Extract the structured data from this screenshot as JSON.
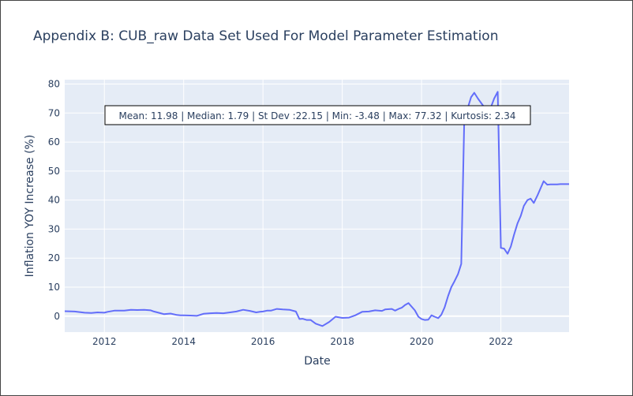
{
  "chart_data": {
    "type": "line",
    "title": "Appendix B: CUB_raw Data Set Used For Model Parameter Estimation",
    "xlabel": "Date",
    "ylabel": "Inflation YOY Increase (%)",
    "annotation": "Mean: 11.98 | Median: 1.79 | St Dev :22.15 | Min: -3.48 | Max: 77.32 | Kurtosis: 2.34",
    "xlim": [
      2011.0,
      2023.72
    ],
    "ylim": [
      -5.5,
      81.5
    ],
    "xticks": [
      2012,
      2014,
      2016,
      2018,
      2020,
      2022
    ],
    "xtick_labels": [
      "2012",
      "2014",
      "2016",
      "2018",
      "2020",
      "2022"
    ],
    "yticks": [
      0,
      10,
      20,
      30,
      40,
      50,
      60,
      70,
      80
    ],
    "ytick_labels": [
      "0",
      "10",
      "20",
      "30",
      "40",
      "50",
      "60",
      "70",
      "80"
    ],
    "grid": true,
    "plot_bg": "#e5ecf6",
    "line_color": "#636efa",
    "series": [
      {
        "x": [
          2011.0,
          2011.25,
          2011.5,
          2011.67,
          2011.83,
          2012.0,
          2012.08,
          2012.25,
          2012.5,
          2012.67,
          2012.83,
          2013.0,
          2013.17,
          2013.25,
          2013.42,
          2013.5,
          2013.67,
          2013.83,
          2013.92,
          2014.0,
          2014.17,
          2014.33,
          2014.5,
          2014.67,
          2014.83,
          2015.0,
          2015.17,
          2015.33,
          2015.5,
          2015.67,
          2015.83,
          2015.92,
          2016.0,
          2016.1,
          2016.2,
          2016.35,
          2016.5,
          2016.67,
          2016.83,
          2016.92,
          2017.0,
          2017.1,
          2017.2,
          2017.33,
          2017.5,
          2017.67,
          2017.83,
          2018.0,
          2018.17,
          2018.33,
          2018.5,
          2018.67,
          2018.83,
          2019.0,
          2019.08,
          2019.25,
          2019.33,
          2019.42,
          2019.5,
          2019.58,
          2019.67,
          2019.83,
          2019.92,
          2020.0,
          2020.08,
          2020.17,
          2020.25,
          2020.33,
          2020.42,
          2020.5,
          2020.58,
          2020.67,
          2020.75,
          2020.83,
          2020.92,
          2021.0,
          2021.08,
          2021.17,
          2021.25,
          2021.33,
          2021.42,
          2021.5,
          2021.58,
          2021.67,
          2021.75,
          2021.83,
          2021.92,
          2022.0,
          2022.08,
          2022.17,
          2022.25,
          2022.33,
          2022.42,
          2022.5,
          2022.58,
          2022.67,
          2022.75,
          2022.83,
          2022.92,
          2023.0,
          2023.08,
          2023.17,
          2023.25,
          2023.33,
          2023.42,
          2023.5,
          2023.58,
          2023.72
        ],
        "y": [
          1.7,
          1.6,
          1.2,
          1.1,
          1.3,
          1.2,
          1.5,
          1.9,
          1.9,
          2.2,
          2.1,
          2.2,
          2.0,
          1.6,
          1.0,
          0.7,
          0.9,
          0.4,
          0.3,
          0.3,
          0.2,
          0.1,
          0.8,
          1.0,
          1.1,
          1.0,
          1.3,
          1.6,
          2.2,
          1.8,
          1.3,
          1.5,
          1.6,
          1.9,
          1.9,
          2.5,
          2.3,
          2.2,
          1.6,
          -1.0,
          -0.9,
          -1.3,
          -1.3,
          -2.6,
          -3.4,
          -2.0,
          -0.2,
          -0.6,
          -0.5,
          0.3,
          1.5,
          1.6,
          2.0,
          1.8,
          2.3,
          2.5,
          1.9,
          2.5,
          2.9,
          3.8,
          4.5,
          2.0,
          -0.2,
          -1.0,
          -1.3,
          -1.2,
          0.3,
          -0.2,
          -0.7,
          0.5,
          3.0,
          7.0,
          10.0,
          12.0,
          14.5,
          18.0,
          70.0,
          72.0,
          75.5,
          77.0,
          75.0,
          73.5,
          72.0,
          71.0,
          72.0,
          75.0,
          77.3,
          23.5,
          23.3,
          21.5,
          24.0,
          28.0,
          32.0,
          34.5,
          38.0,
          40.0,
          40.5,
          39.0,
          41.5,
          44.0,
          46.5,
          45.3,
          45.4,
          45.4,
          45.4,
          45.5,
          45.5,
          45.5
        ]
      }
    ]
  }
}
